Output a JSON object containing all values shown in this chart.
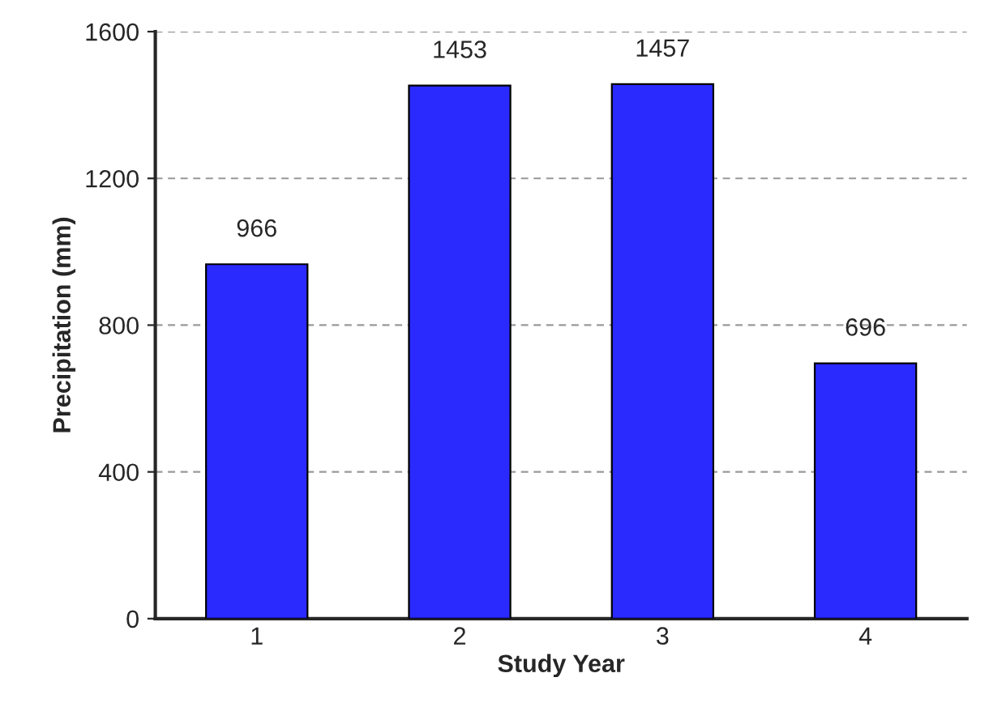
{
  "chart_data": {
    "type": "bar",
    "xlabel": "Study Year",
    "ylabel": "Precipitation (mm)",
    "categories": [
      "1",
      "2",
      "3",
      "4"
    ],
    "values": [
      966,
      1453,
      1457,
      696
    ],
    "color": "#2a2aff",
    "ylim": [
      0,
      1600
    ],
    "yticks": [
      0,
      400,
      800,
      1200,
      1600
    ],
    "grid": "y",
    "data_labels": true
  }
}
